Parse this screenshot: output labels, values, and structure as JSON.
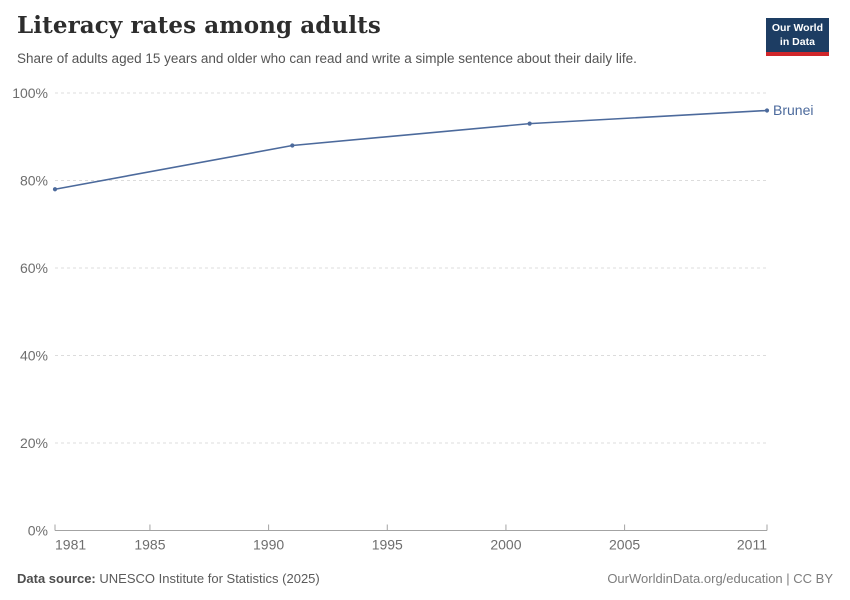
{
  "header": {
    "title": "Literacy rates among adults",
    "subtitle": "Share of adults aged 15 years and older who can read and write a simple sentence about their daily life.",
    "logo": {
      "line1": "Our World",
      "line2": "in Data",
      "bg_color": "#1d3d63",
      "bar_color": "#d0262a"
    }
  },
  "chart_data": {
    "type": "line",
    "title": "Literacy rates among adults",
    "xlabel": "",
    "ylabel": "",
    "xlim": [
      1981,
      2011
    ],
    "ylim": [
      0,
      100
    ],
    "x_ticks": [
      1981,
      1985,
      1990,
      1995,
      2000,
      2005,
      2011
    ],
    "y_ticks": [
      0,
      20,
      40,
      60,
      80,
      100
    ],
    "y_tick_suffix": "%",
    "grid": "horizontal-dashed",
    "legend_position": "end-of-line-label",
    "series": [
      {
        "name": "Brunei",
        "color": "#4c6a9c",
        "x": [
          1981,
          1991,
          2001,
          2011
        ],
        "values": [
          78,
          88,
          93,
          96
        ]
      }
    ]
  },
  "footer": {
    "source_label": "Data source:",
    "source_text": "UNESCO Institute for Statistics (2025)",
    "link_text": "OurWorldinData.org/education | CC BY"
  }
}
